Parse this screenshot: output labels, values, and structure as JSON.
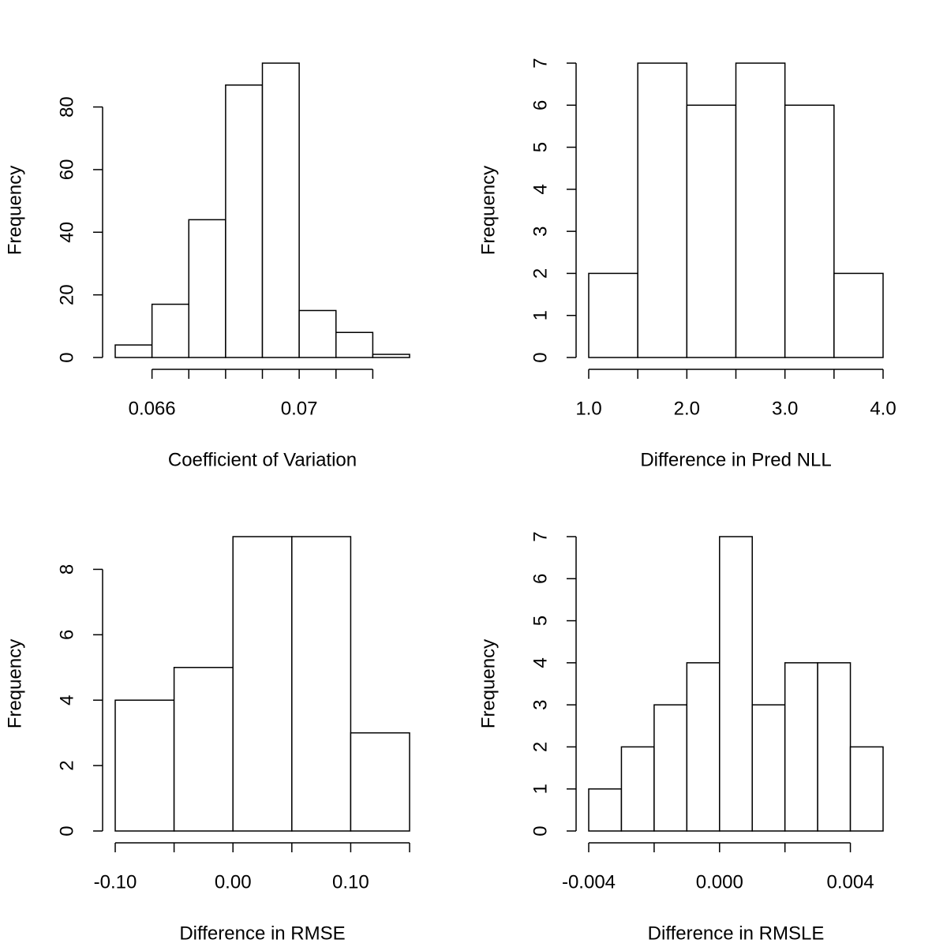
{
  "chart_data": [
    {
      "type": "histogram",
      "xlabel": "Coefficient of Variation",
      "ylabel": "Frequency",
      "color": "#ffffff",
      "bins": [
        0.065,
        0.066,
        0.067,
        0.068,
        0.069,
        0.07,
        0.071,
        0.072,
        0.073
      ],
      "values": [
        4,
        17,
        44,
        87,
        94,
        15,
        8,
        1
      ],
      "xlim": [
        0.065,
        0.073
      ],
      "ylim": [
        0,
        94
      ],
      "xticks": [
        0.066,
        {
          "value": 0.067,
          "label": null
        },
        {
          "value": 0.068,
          "label": null
        },
        {
          "value": 0.069,
          "label": null
        },
        0.07,
        {
          "value": 0.071,
          "label": null
        },
        {
          "value": 0.072,
          "label": null
        }
      ],
      "yticks": [
        0,
        20,
        40,
        60,
        80
      ]
    },
    {
      "type": "histogram",
      "xlabel": "Difference in Pred NLL",
      "ylabel": "Frequency",
      "color": "#ffffff",
      "bins": [
        1.0,
        1.5,
        2.0,
        2.5,
        3.0,
        3.5,
        4.0
      ],
      "values": [
        2,
        7,
        6,
        7,
        6,
        2
      ],
      "xlim": [
        1.0,
        4.0
      ],
      "ylim": [
        0,
        7
      ],
      "xticks": [
        {
          "value": 1,
          "label": "1.0"
        },
        {
          "value": 1.5,
          "label": null
        },
        {
          "value": 2,
          "label": "2.0"
        },
        {
          "value": 2.5,
          "label": null
        },
        {
          "value": 3,
          "label": "3.0"
        },
        {
          "value": 3.5,
          "label": null
        },
        {
          "value": 4,
          "label": "4.0"
        }
      ],
      "yticks": [
        0,
        1,
        2,
        3,
        4,
        5,
        6,
        7
      ]
    },
    {
      "type": "histogram",
      "xlabel": "Difference in RMSE",
      "ylabel": "Frequency",
      "color": "#ffffff",
      "bins": [
        -0.1,
        -0.05,
        0.0,
        0.05,
        0.1,
        0.15
      ],
      "values": [
        4,
        5,
        9,
        9,
        3
      ],
      "xlim": [
        -0.1,
        0.15
      ],
      "ylim": [
        0,
        9
      ],
      "xticks": [
        {
          "value": -0.1,
          "label": "-0.10"
        },
        {
          "value": -0.05,
          "label": null
        },
        {
          "value": 0,
          "label": "0.00"
        },
        {
          "value": 0.05,
          "label": null
        },
        {
          "value": 0.1,
          "label": "0.10"
        },
        {
          "value": 0.15,
          "label": null
        }
      ],
      "yticks": [
        0,
        2,
        4,
        6,
        8
      ]
    },
    {
      "type": "histogram",
      "xlabel": "Difference in RMSLE",
      "ylabel": "Frequency",
      "color": "#ffffff",
      "bins": [
        -0.004,
        -0.003,
        -0.002,
        -0.001,
        0.0,
        0.001,
        0.002,
        0.003,
        0.004,
        0.005
      ],
      "values": [
        1,
        2,
        3,
        4,
        7,
        3,
        4,
        4,
        2
      ],
      "xlim": [
        -0.004,
        0.005
      ],
      "ylim": [
        0,
        7
      ],
      "xticks": [
        -0.004,
        {
          "value": -0.002,
          "label": null
        },
        {
          "value": 0,
          "label": "0.000"
        },
        {
          "value": 0.002,
          "label": null
        },
        0.004
      ],
      "yticks": [
        0,
        1,
        2,
        3,
        4,
        5,
        6,
        7
      ]
    }
  ]
}
